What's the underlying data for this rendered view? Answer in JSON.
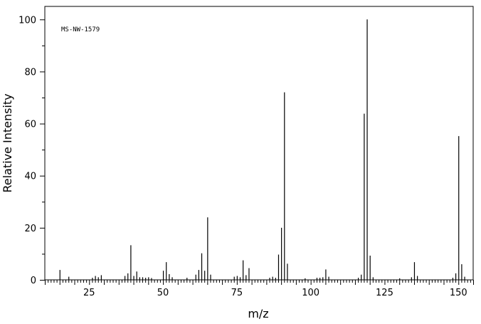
{
  "chart_data": {
    "type": "bar",
    "annotation": "MS-NW-1579",
    "xlabel": "m/z",
    "ylabel": "Relative Intensity",
    "xlim": [
      10,
      155
    ],
    "ylim": [
      0,
      105
    ],
    "x_ticks": [
      25,
      50,
      75,
      100,
      125,
      150
    ],
    "y_ticks": [
      0,
      20,
      40,
      60,
      80,
      100
    ],
    "grid": false,
    "legend": "none",
    "series": [
      {
        "x": [
          15,
          18,
          26,
          27,
          28,
          29,
          37,
          38,
          39,
          40,
          41,
          42,
          43,
          44,
          45,
          46,
          50,
          51,
          52,
          53,
          58,
          61,
          62,
          63,
          64,
          65,
          66,
          74,
          75,
          76,
          77,
          78,
          79,
          86,
          87,
          88,
          89,
          90,
          91,
          92,
          98,
          102,
          103,
          104,
          105,
          106,
          116,
          117,
          118,
          119,
          120,
          121,
          130,
          134,
          135,
          136,
          148,
          149,
          150,
          151,
          152
        ],
        "values": [
          3.8,
          1.2,
          0.8,
          1.5,
          1.0,
          1.8,
          1.5,
          2.5,
          13.3,
          1.5,
          3.2,
          1.0,
          1.0,
          0.8,
          1.0,
          0.7,
          3.5,
          6.8,
          2.2,
          1.0,
          0.8,
          2.0,
          3.8,
          10.2,
          3.5,
          24.0,
          2.0,
          1.2,
          1.5,
          1.0,
          7.5,
          1.8,
          4.5,
          0.8,
          1.2,
          0.8,
          9.7,
          20.0,
          72.0,
          6.2,
          0.6,
          0.8,
          0.8,
          1.0,
          4.0,
          1.2,
          0.8,
          2.0,
          63.8,
          100.0,
          9.3,
          1.0,
          0.6,
          1.0,
          6.8,
          1.5,
          0.8,
          2.5,
          55.2,
          6.0,
          1.2
        ]
      }
    ]
  }
}
